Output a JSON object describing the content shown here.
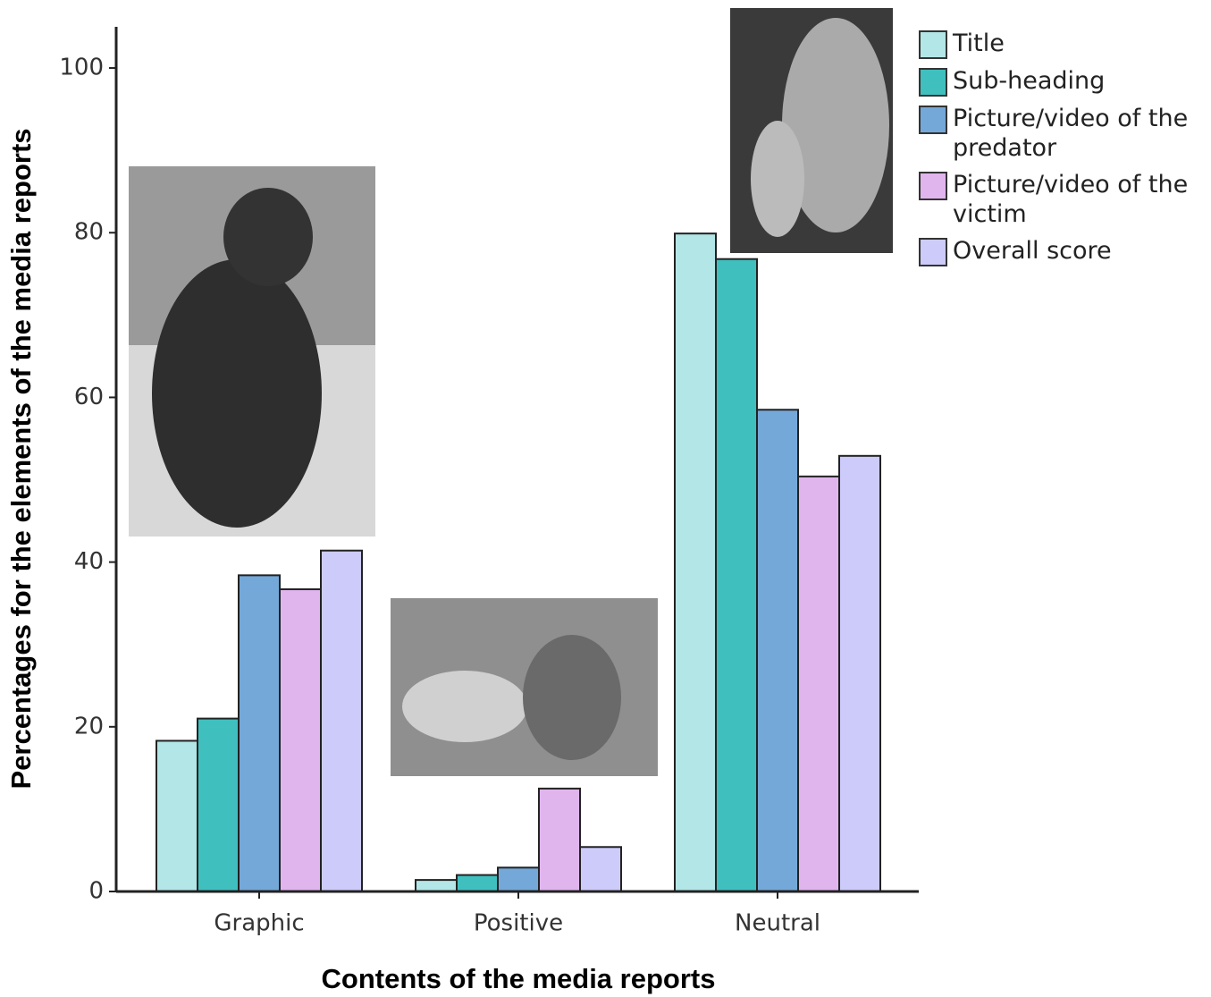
{
  "chart_data": {
    "type": "bar",
    "x_label": "Contents of the media reports",
    "y_label": "Percentages for the elements of the media reports",
    "categories": [
      "Graphic",
      "Positive",
      "Neutral"
    ],
    "series": [
      {
        "name": "Title",
        "color": "#b3e6e6",
        "values": [
          18.3,
          1.4,
          79.9
        ]
      },
      {
        "name": "Sub-heading",
        "color": "#40bfbf",
        "values": [
          21.0,
          2.0,
          76.8
        ]
      },
      {
        "name": "Picture/video of the predator",
        "color": "#74a8d8",
        "values": [
          38.4,
          2.9,
          58.5
        ]
      },
      {
        "name": "Picture/video of the victim",
        "color": "#e0b5ee",
        "values": [
          36.7,
          12.5,
          50.4
        ]
      },
      {
        "name": "Overall score",
        "color": "#cccbfa",
        "values": [
          41.4,
          5.4,
          52.9
        ]
      }
    ],
    "ylim": [
      0,
      105
    ],
    "yticks": [
      0,
      20,
      40,
      60,
      80,
      100
    ],
    "grid": false,
    "legend": "top-right"
  }
}
